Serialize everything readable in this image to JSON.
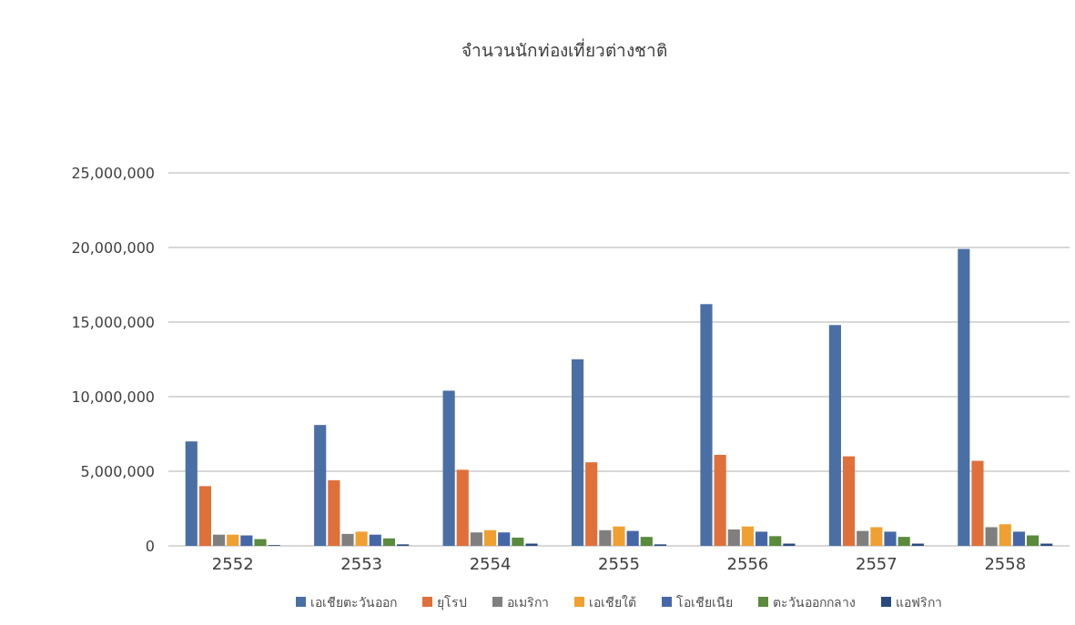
{
  "chart_data": {
    "type": "bar",
    "title": "จำนวนนักท่องเที่ยวต่างชาติ",
    "categories": [
      "2552",
      "2553",
      "2554",
      "2555",
      "2556",
      "2557",
      "2558"
    ],
    "series": [
      {
        "name": "เอเชียตะวันออก",
        "color": "#4a6fa5",
        "values": [
          7000000,
          8100000,
          10400000,
          12500000,
          16200000,
          14800000,
          19900000
        ]
      },
      {
        "name": "ยุโรป",
        "color": "#e0703a",
        "values": [
          4000000,
          4400000,
          5100000,
          5600000,
          6100000,
          6000000,
          5700000
        ]
      },
      {
        "name": "อเมริกา",
        "color": "#7f7f7f",
        "values": [
          750000,
          800000,
          900000,
          1050000,
          1100000,
          1000000,
          1250000
        ]
      },
      {
        "name": "เอเชียใต้",
        "color": "#f0a030",
        "values": [
          750000,
          950000,
          1050000,
          1300000,
          1300000,
          1250000,
          1450000
        ]
      },
      {
        "name": "โอเชียเนีย",
        "color": "#4567a8",
        "values": [
          700000,
          750000,
          900000,
          1000000,
          950000,
          950000,
          950000
        ]
      },
      {
        "name": "ตะวันออกกลาง",
        "color": "#5a8a3c",
        "values": [
          450000,
          500000,
          550000,
          600000,
          650000,
          600000,
          700000
        ]
      },
      {
        "name": "แอฟริกา",
        "color": "#2a4a7f",
        "values": [
          50000,
          100000,
          150000,
          100000,
          150000,
          150000,
          150000
        ]
      }
    ],
    "ylim": [
      0,
      25000000
    ],
    "yticks": [
      {
        "value": 0,
        "label": "0"
      },
      {
        "value": 5000000,
        "label": "5,000,000"
      },
      {
        "value": 10000000,
        "label": "10,000,000"
      },
      {
        "value": 15000000,
        "label": "15,000,000"
      },
      {
        "value": 20000000,
        "label": "20,000,000"
      },
      {
        "value": 25000000,
        "label": "25,000,000"
      }
    ],
    "grid": "y",
    "legend": "bottom"
  }
}
